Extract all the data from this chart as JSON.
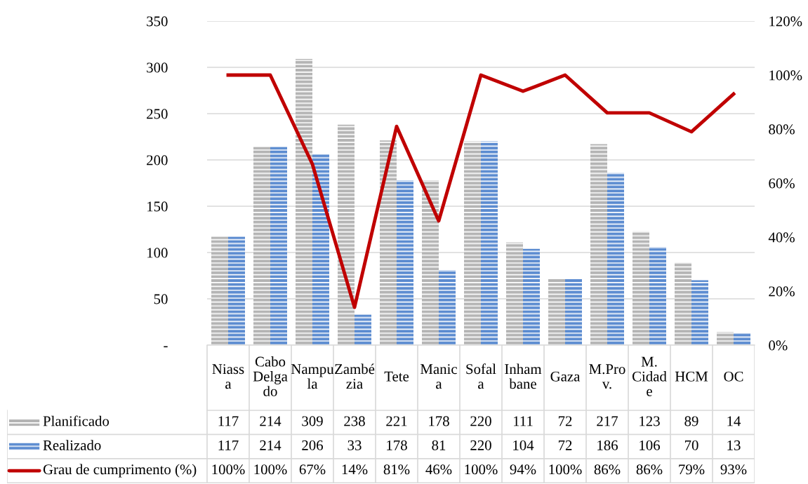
{
  "chart_data": {
    "type": "bar",
    "categories": [
      "Niassa",
      "Cabo Delgado",
      "Nampula",
      "Zambézia",
      "Tete",
      "Manica",
      "Sofala",
      "Inhambane",
      "Gaza",
      "M.Prov.",
      "M. Cidade",
      "HCM",
      "OC"
    ],
    "series": [
      {
        "name": "Planificado",
        "color": "#b4b4b4",
        "values": [
          117,
          214,
          309,
          238,
          221,
          178,
          220,
          111,
          72,
          217,
          123,
          89,
          14
        ],
        "value_labels": [
          "117",
          "214",
          "309",
          "238",
          "221",
          "178",
          "220",
          "111",
          "72",
          "217",
          "123",
          "89",
          "14"
        ]
      },
      {
        "name": "Realizado",
        "color": "#5b8bd0",
        "values": [
          117,
          214,
          206,
          33,
          178,
          81,
          220,
          104,
          72,
          186,
          106,
          70,
          13
        ],
        "value_labels": [
          "117",
          "214",
          "206",
          "33",
          "178",
          "81",
          "220",
          "104",
          "72",
          "186",
          "106",
          "70",
          "13"
        ]
      },
      {
        "name": "Grau de cumprimento (%)",
        "type": "line",
        "axis": "y2",
        "color": "#c00000",
        "values": [
          100,
          100,
          67,
          14,
          81,
          46,
          100,
          94,
          100,
          86,
          86,
          79,
          93
        ],
        "value_labels": [
          "100%",
          "100%",
          "67%",
          "14%",
          "81%",
          "46%",
          "100%",
          "94%",
          "100%",
          "86%",
          "86%",
          "79%",
          "93%"
        ]
      }
    ],
    "ylim": [
      0,
      350
    ],
    "yticks": [
      {
        "value": 0,
        "label": "-"
      },
      50,
      100,
      150,
      200,
      250,
      300,
      350
    ],
    "y2lim": [
      0,
      120
    ],
    "y2ticks": [
      {
        "value": 0,
        "label": "0%"
      },
      {
        "value": 20,
        "label": "20%"
      },
      {
        "value": 40,
        "label": "40%"
      },
      {
        "value": 60,
        "label": "60%"
      },
      {
        "value": 80,
        "label": "80%"
      },
      {
        "value": 100,
        "label": "100%"
      },
      {
        "value": 120,
        "label": "120%"
      }
    ],
    "grid": "y",
    "legend": "bottom",
    "marker": "none",
    "line_style": "solid"
  }
}
